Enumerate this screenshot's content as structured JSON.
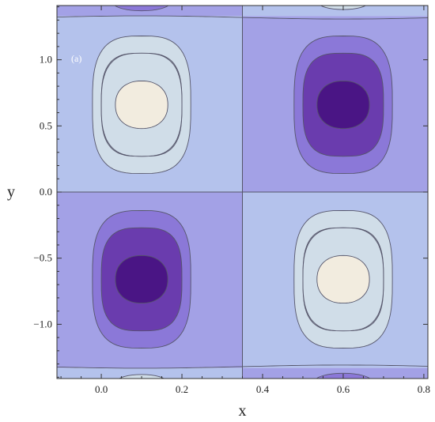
{
  "chart_data": {
    "type": "contour",
    "panel_label": "(a)",
    "xlabel": "x",
    "ylabel": "y",
    "xlim": [
      -0.11,
      0.81
    ],
    "ylim": [
      -1.41,
      1.41
    ],
    "x_ticks": [
      {
        "value": 0.0,
        "label": "0.0"
      },
      {
        "value": 0.2,
        "label": "0.2"
      },
      {
        "value": 0.4,
        "label": "0.4"
      },
      {
        "value": 0.6,
        "label": "0.6"
      },
      {
        "value": 0.8,
        "label": "0.8"
      }
    ],
    "y_ticks": [
      {
        "value": 1.0,
        "label": "1.0"
      },
      {
        "value": 0.5,
        "label": "0.5"
      },
      {
        "value": 0.0,
        "label": "0.0"
      },
      {
        "value": -0.5,
        "label": "−0.5"
      },
      {
        "value": -1.0,
        "label": "−1.0"
      }
    ],
    "nodal_lines": {
      "x": 0.35,
      "y": 0.0
    },
    "extrema": [
      {
        "x": 0.1,
        "y": 0.66,
        "kind": "max"
      },
      {
        "x": 0.6,
        "y": 0.66,
        "kind": "min"
      },
      {
        "x": 0.1,
        "y": -0.66,
        "kind": "min"
      },
      {
        "x": 0.6,
        "y": -0.66,
        "kind": "max"
      }
    ],
    "contour_colors": [
      "#4a1585",
      "#6a3cae",
      "#8b78d8",
      "#a3a1e6",
      "#b4c2ec",
      "#d0dde8",
      "#f2ecdf"
    ],
    "contour_line_color": "#55556a",
    "grid": false
  }
}
